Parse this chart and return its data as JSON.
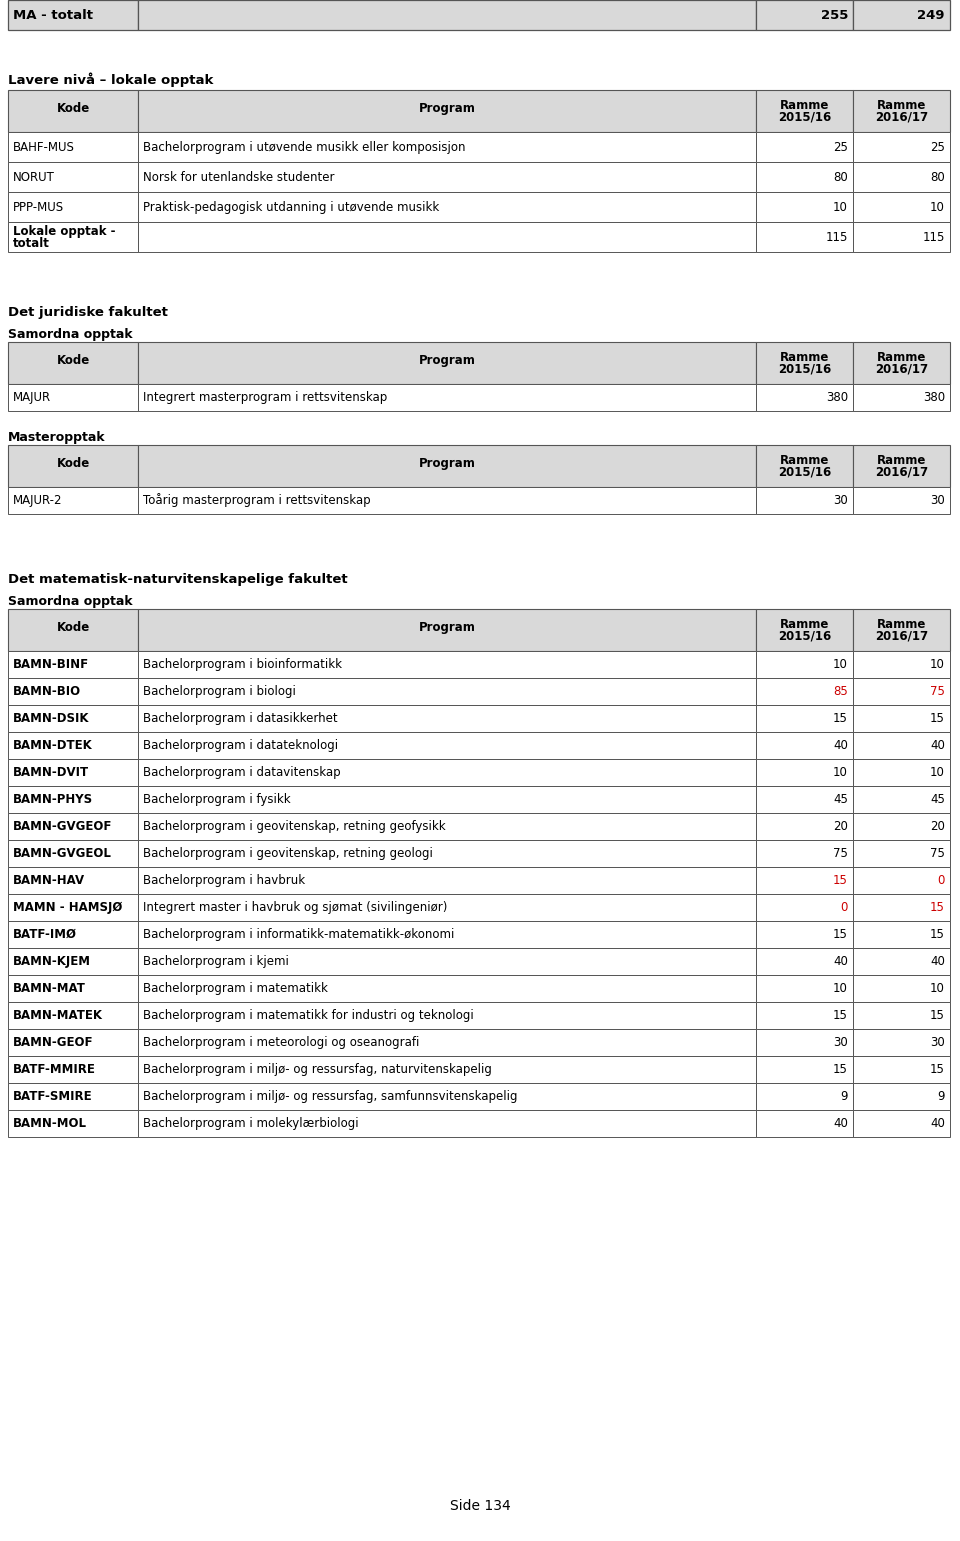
{
  "bg_color": "#ffffff",
  "page_number": "Side 134",
  "header_bg": "#d9d9d9",
  "border_color": "#555555",
  "red_color": "#cc0000",
  "black_color": "#000000",
  "col_header_text_line1": [
    "Kode",
    "Program",
    "Ramme",
    "Ramme"
  ],
  "col_header_text_line2": [
    "",
    "",
    "2015/16",
    "2016/17"
  ],
  "section1": {
    "title": "MA - totalt",
    "val1": "255",
    "val2": "249"
  },
  "section2_title": "Lavere nivå – lokale opptak",
  "section2_rows": [
    {
      "kode": "BAHF-MUS",
      "program": "Bachelorprogram i utøvende musikk eller komposisjon",
      "v1": "25",
      "v2": "25",
      "bold_kode": false,
      "red1": false,
      "red2": false
    },
    {
      "kode": "NORUT",
      "program": "Norsk for utenlandske studenter",
      "v1": "80",
      "v2": "80",
      "bold_kode": false,
      "red1": false,
      "red2": false
    },
    {
      "kode": "PPP-MUS",
      "program": "Praktisk-pedagogisk utdanning i utøvende musikk",
      "v1": "10",
      "v2": "10",
      "bold_kode": false,
      "red1": false,
      "red2": false
    },
    {
      "kode": "Lokale opptak -\ntotalt",
      "program": "",
      "v1": "115",
      "v2": "115",
      "bold_kode": true,
      "red1": false,
      "red2": false
    }
  ],
  "section3_title": "Det juridiske fakultet",
  "section3_sub1": "Samordna opptak",
  "section3_rows1": [
    {
      "kode": "MAJUR",
      "program": "Integrert masterprogram i rettsvitenskap",
      "v1": "380",
      "v2": "380",
      "bold_kode": false,
      "red1": false,
      "red2": false
    }
  ],
  "section3_sub2": "Masteropptak",
  "section3_rows2": [
    {
      "kode": "MAJUR-2",
      "program": "Toårig masterprogram i rettsvitenskap",
      "v1": "30",
      "v2": "30",
      "bold_kode": false,
      "red1": false,
      "red2": false
    }
  ],
  "section4_title": "Det matematisk-naturvitenskapelige fakultet",
  "section4_sub1": "Samordna opptak",
  "section4_rows1": [
    {
      "kode": "BAMN-BINF",
      "program": "Bachelorprogram i bioinformatikk",
      "v1": "10",
      "v2": "10",
      "bold_kode": true,
      "red1": false,
      "red2": false
    },
    {
      "kode": "BAMN-BIO",
      "program": "Bachelorprogram i biologi",
      "v1": "85",
      "v2": "75",
      "bold_kode": true,
      "red1": true,
      "red2": true
    },
    {
      "kode": "BAMN-DSIK",
      "program": "Bachelorprogram i datasikkerhet",
      "v1": "15",
      "v2": "15",
      "bold_kode": true,
      "red1": false,
      "red2": false
    },
    {
      "kode": "BAMN-DTEK",
      "program": "Bachelorprogram i datateknologi",
      "v1": "40",
      "v2": "40",
      "bold_kode": true,
      "red1": false,
      "red2": false
    },
    {
      "kode": "BAMN-DVIT",
      "program": "Bachelorprogram i datavitenskap",
      "v1": "10",
      "v2": "10",
      "bold_kode": true,
      "red1": false,
      "red2": false
    },
    {
      "kode": "BAMN-PHYS",
      "program": "Bachelorprogram i fysikk",
      "v1": "45",
      "v2": "45",
      "bold_kode": true,
      "red1": false,
      "red2": false
    },
    {
      "kode": "BAMN-GVGEOF",
      "program": "Bachelorprogram i geovitenskap, retning geofysikk",
      "v1": "20",
      "v2": "20",
      "bold_kode": true,
      "red1": false,
      "red2": false
    },
    {
      "kode": "BAMN-GVGEOL",
      "program": "Bachelorprogram i geovitenskap, retning geologi",
      "v1": "75",
      "v2": "75",
      "bold_kode": true,
      "red1": false,
      "red2": false
    },
    {
      "kode": "BAMN-HAV",
      "program": "Bachelorprogram i havbruk",
      "v1": "15",
      "v2": "0",
      "bold_kode": true,
      "red1": true,
      "red2": true
    },
    {
      "kode": "MAMN - HAMSJØ",
      "program": "Integrert master i havbruk og sjømat (sivilingeniør)",
      "v1": "0",
      "v2": "15",
      "bold_kode": true,
      "red1": true,
      "red2": true
    },
    {
      "kode": "BATF-IMØ",
      "program": "Bachelorprogram i informatikk-matematikk-økonomi",
      "v1": "15",
      "v2": "15",
      "bold_kode": true,
      "red1": false,
      "red2": false
    },
    {
      "kode": "BAMN-KJEM",
      "program": "Bachelorprogram i kjemi",
      "v1": "40",
      "v2": "40",
      "bold_kode": true,
      "red1": false,
      "red2": false
    },
    {
      "kode": "BAMN-MAT",
      "program": "Bachelorprogram i matematikk",
      "v1": "10",
      "v2": "10",
      "bold_kode": true,
      "red1": false,
      "red2": false
    },
    {
      "kode": "BAMN-MATEK",
      "program": "Bachelorprogram i matematikk for industri og teknologi",
      "v1": "15",
      "v2": "15",
      "bold_kode": true,
      "red1": false,
      "red2": false
    },
    {
      "kode": "BAMN-GEOF",
      "program": "Bachelorprogram i meteorologi og oseanografi",
      "v1": "30",
      "v2": "30",
      "bold_kode": true,
      "red1": false,
      "red2": false
    },
    {
      "kode": "BATF-MMIRE",
      "program": "Bachelorprogram i miljø- og ressursfag, naturvitenskapelig",
      "v1": "15",
      "v2": "15",
      "bold_kode": true,
      "red1": false,
      "red2": false
    },
    {
      "kode": "BATF-SMIRE",
      "program": "Bachelorprogram i miljø- og ressursfag, samfunnsvitenskapelig",
      "v1": "9",
      "v2": "9",
      "bold_kode": true,
      "red1": false,
      "red2": false
    },
    {
      "kode": "BAMN-MOL",
      "program": "Bachelorprogram i molekylærbiologi",
      "v1": "40",
      "v2": "40",
      "bold_kode": true,
      "red1": false,
      "red2": false
    }
  ]
}
